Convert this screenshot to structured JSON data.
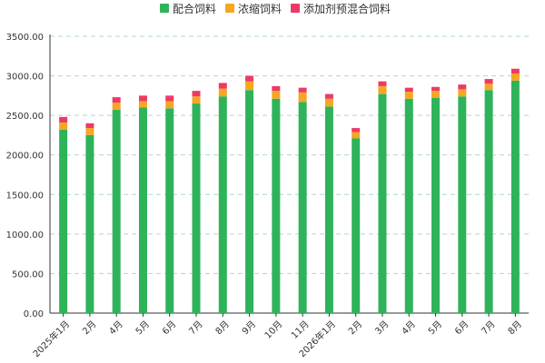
{
  "chart_data": {
    "type": "bar",
    "stacked": true,
    "categories": [
      "2025年1月",
      "2月",
      "4月",
      "5月",
      "6月",
      "7月",
      "8月",
      "9月",
      "10月",
      "11月",
      "2026年1月",
      "2月",
      "3月",
      "4月",
      "5月",
      "6月",
      "7月",
      "8月"
    ],
    "series": [
      {
        "name": "配合饲料",
        "color": "#2eb35a",
        "values": [
          2320,
          2250,
          2570,
          2600,
          2590,
          2650,
          2740,
          2820,
          2710,
          2670,
          2610,
          2210,
          2770,
          2710,
          2720,
          2740,
          2820,
          2940
        ]
      },
      {
        "name": "浓缩饲料",
        "color": "#f5a623",
        "values": [
          90,
          90,
          90,
          80,
          90,
          90,
          100,
          110,
          100,
          120,
          100,
          80,
          100,
          90,
          90,
          90,
          80,
          90
        ]
      },
      {
        "name": "添加剂预混合饲料",
        "color": "#ee3a63",
        "values": [
          70,
          60,
          70,
          70,
          70,
          70,
          70,
          70,
          60,
          60,
          60,
          50,
          60,
          50,
          50,
          60,
          60,
          60
        ]
      }
    ],
    "y_ticks": [
      "0.00",
      "500.00",
      "1000.00",
      "1500.00",
      "2000.00",
      "2500.00",
      "3000.00",
      "3500.00"
    ],
    "ylim": [
      0,
      3500
    ],
    "grid": true,
    "legend_position": "top-center"
  }
}
